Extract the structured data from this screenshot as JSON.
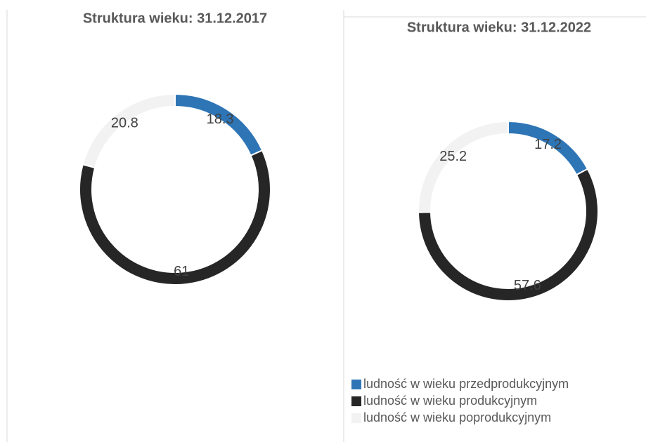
{
  "chart_data": [
    {
      "type": "donut",
      "title": "Struktura wieku: 31.12.2017",
      "categories": [
        "ludność w wieku przedprodukcyjnym",
        "ludność w wieku produkcyjnym",
        "ludność w wieku poprodukcyjnym"
      ],
      "values": [
        18.3,
        61,
        20.8
      ],
      "colors": [
        "#2e75b6",
        "#262626",
        "#f2f2f2"
      ],
      "legend": false
    },
    {
      "type": "donut",
      "title": "Struktura wieku: 31.12.2022",
      "categories": [
        "ludność w wieku przedprodukcyjnym",
        "ludność w wieku produkcyjnym",
        "ludność w wieku poprodukcyjnym"
      ],
      "values": [
        17.2,
        57.6,
        25.2
      ],
      "colors": [
        "#2e75b6",
        "#262626",
        "#f2f2f2"
      ],
      "legend": true
    }
  ]
}
